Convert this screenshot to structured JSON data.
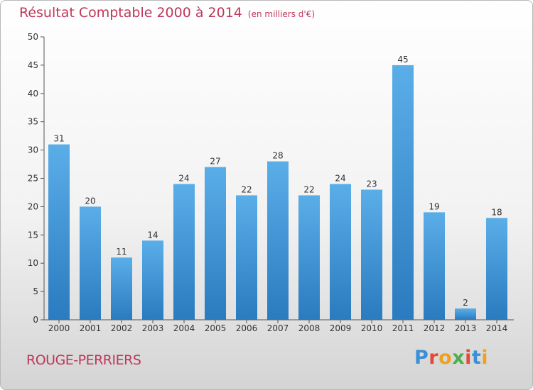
{
  "header": {
    "title": "Résultat Comptable 2000 à 2014",
    "unit": "(en milliers d'€)"
  },
  "footer": {
    "town": "ROUGE-PERRIERS",
    "logo_text": "Proxiti"
  },
  "colors": {
    "title": "#c0365a",
    "bar_top": "#5aaee8",
    "bar_bottom": "#2a7bbf",
    "axis": "#555555"
  },
  "chart_data": {
    "type": "bar",
    "title": "Résultat Comptable 2000 à 2014",
    "subtitle": "(en milliers d'€)",
    "categories": [
      "2000",
      "2001",
      "2002",
      "2003",
      "2004",
      "2005",
      "2006",
      "2007",
      "2008",
      "2009",
      "2010",
      "2011",
      "2012",
      "2013",
      "2014"
    ],
    "values": [
      31,
      20,
      11,
      14,
      24,
      27,
      22,
      28,
      22,
      24,
      23,
      45,
      19,
      2,
      18
    ],
    "yticks": [
      0,
      5,
      10,
      15,
      20,
      25,
      30,
      35,
      40,
      45,
      50
    ],
    "ylim": [
      0,
      50
    ],
    "grid": false,
    "legend": "none"
  }
}
